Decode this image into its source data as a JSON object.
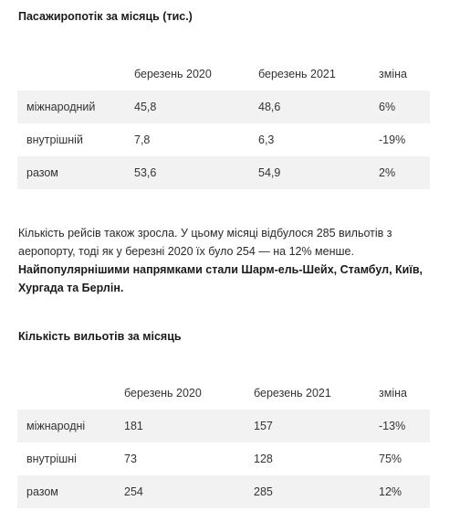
{
  "table1": {
    "title": "Пасажиропотік за місяць (тис.)",
    "headers": [
      "",
      "березень 2020",
      "березень 2021",
      "зміна"
    ],
    "rows": [
      [
        "міжнародний",
        "45,8",
        "48,6",
        "6%"
      ],
      [
        "внутрішній",
        "7,8",
        "6,3",
        "-19%"
      ],
      [
        "разом",
        "53,6",
        "54,9",
        "2%"
      ]
    ]
  },
  "paragraph": {
    "text": "Кількість рейсів також зросла. У цьому місяці відбулося 285 вильотів з аеропорту, тоді як у березні 2020 їх було 254 — на 12% менше. ",
    "bold": "Найпопулярнішими напрямками стали Шарм-ель-Шейх, Стамбул, Київ, Хургада та Берлін."
  },
  "table2": {
    "title": "Кількість вильотів за місяць",
    "headers": [
      "",
      "березень 2020",
      "березень 2021",
      "зміна"
    ],
    "rows": [
      [
        "міжнародні",
        "181",
        "157",
        "-13%"
      ],
      [
        "внутрішні",
        "73",
        "128",
        "75%"
      ],
      [
        "разом",
        "254",
        "285",
        "12%"
      ]
    ]
  }
}
